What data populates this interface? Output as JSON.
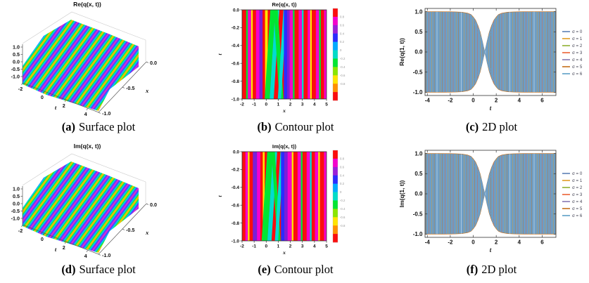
{
  "figure": {
    "background": "#ffffff",
    "description": "Six-panel figure: surface, contour and 2D plots of the real and imaginary parts of q(x,t)"
  },
  "palette": {
    "R": "#fb0d0d",
    "M": "#f500cd",
    "P": "#7a1fd8",
    "B": "#2b2bff",
    "C": "#00dcd2",
    "G": "#00e632",
    "Y": "#ffe400"
  },
  "chart_data": [
    {
      "id": "a",
      "type": "surface",
      "title": "Re(q(x, t))",
      "caption": {
        "label": "(a)",
        "text": "Surface plot"
      },
      "axes": {
        "z_ticks": [
          "1.0",
          "0.5",
          "0.0",
          "-0.5",
          "-1.0"
        ],
        "z_range": [
          -1,
          1
        ],
        "t_label": "t",
        "t_ticks": [
          "-2",
          "0",
          "2",
          "4"
        ],
        "t_range": [
          -2,
          5
        ],
        "x_label": "x",
        "x_ticks": [
          "0.0",
          "-0.5",
          "-1.0"
        ],
        "x_range": [
          -1,
          0
        ]
      },
      "surface": {
        "ridges": 7.5,
        "colormap": [
          "#ff2ec8",
          "#5033ff",
          "#00d2ff",
          "#00e63c",
          "#ffdc00",
          "#ff7800"
        ],
        "description": "periodic plane-wave ridges of amplitude 1 running parallel to the x axis, rainbow colored by height"
      }
    },
    {
      "id": "b",
      "type": "heatmap",
      "subtype": "contour",
      "title": "Re(q(x, t))",
      "caption": {
        "label": "(b)",
        "text": "Contour plot"
      },
      "xlabel": "x",
      "ylabel": "t",
      "x_ticks": [
        "-2",
        "-1",
        "0",
        "1",
        "2",
        "3",
        "4",
        "5"
      ],
      "xlim": [
        -2,
        5
      ],
      "y_ticks": [
        "0.0",
        "-0.2",
        "-0.4",
        "-0.6",
        "-0.8",
        "-1.0"
      ],
      "ylim": [
        -1,
        0
      ],
      "stripes": [
        [
          "R",
          5,
          0
        ],
        [
          "G",
          2,
          0
        ],
        [
          "M",
          4,
          0
        ],
        [
          "Y",
          2,
          0
        ],
        [
          "R",
          4,
          0
        ],
        [
          "M",
          4,
          0
        ],
        [
          "P",
          4,
          0
        ],
        [
          "R",
          3,
          0
        ],
        [
          "Y",
          3,
          0
        ],
        [
          "G",
          6,
          -1
        ],
        [
          "C",
          5,
          -1
        ],
        [
          "G",
          5,
          1
        ],
        [
          "C",
          4,
          -1
        ],
        [
          "B",
          4,
          0
        ],
        [
          "P",
          3,
          0
        ],
        [
          "M",
          4,
          0
        ],
        [
          "G",
          2,
          0
        ],
        [
          "R",
          5,
          0
        ],
        [
          "M",
          4,
          0
        ],
        [
          "C",
          2,
          0
        ],
        [
          "R",
          5,
          0
        ],
        [
          "M",
          3,
          0
        ],
        [
          "Y",
          2,
          0
        ],
        [
          "R",
          5,
          0
        ],
        [
          "M",
          4,
          0
        ],
        [
          "G",
          2,
          0
        ],
        [
          "R",
          4,
          0
        ],
        [
          "M",
          3,
          0
        ]
      ],
      "colorbar": {
        "colors": [
          "#fb0d0d",
          "#f500cd",
          "#9a1fd8",
          "#2b2bff",
          "#00aaff",
          "#00dcc8",
          "#00e632",
          "#8ae600",
          "#ffe400",
          "#ff9000",
          "#fb0d0d"
        ],
        "labels": [
          "0.8",
          "0.6",
          "0.4",
          "0.2",
          "0",
          "-0.2",
          "-0.4",
          "-0.6",
          "-0.8"
        ]
      }
    },
    {
      "id": "c",
      "type": "line",
      "caption": {
        "label": "(c)",
        "text": "2D plot"
      },
      "xlabel": "t",
      "ylabel": "Re(q(1, t))",
      "x_ticks": [
        "-4",
        "-2",
        "0",
        "2",
        "4",
        "6"
      ],
      "xlim": [
        -4.2,
        7.2
      ],
      "y_ticks": [
        "1.0",
        "0.5",
        "0.0",
        "-0.5",
        "-1.0"
      ],
      "ylim": [
        -1.08,
        1.08
      ],
      "legend": [
        {
          "label": "σ = 0",
          "color": "#5e81b5"
        },
        {
          "label": "σ = 1",
          "color": "#e19c24"
        },
        {
          "label": "σ = 2",
          "color": "#8fb032"
        },
        {
          "label": "σ = 3",
          "color": "#eb6235"
        },
        {
          "label": "σ = 4",
          "color": "#8778b3"
        },
        {
          "label": "σ = 5",
          "color": "#c56e1a"
        },
        {
          "label": "σ = 6",
          "color": "#5d9ec7"
        }
      ],
      "envelope": {
        "pinch_t": 1.0,
        "amplitude": 1.0,
        "formula": "|tanh(1.35 (t - 1))|",
        "samples": [
          [
            -4.2,
            1.0
          ],
          [
            -3.5,
            1.0
          ],
          [
            -3,
            1.0
          ],
          [
            -2.5,
            0.999
          ],
          [
            -2,
            0.998
          ],
          [
            -1.5,
            0.995
          ],
          [
            -1,
            0.988
          ],
          [
            -0.5,
            0.963
          ],
          [
            -0.2,
            0.93
          ],
          [
            0,
            0.87
          ],
          [
            0.2,
            0.79
          ],
          [
            0.4,
            0.66
          ],
          [
            0.6,
            0.5
          ],
          [
            0.8,
            0.26
          ],
          [
            0.9,
            0.13
          ],
          [
            1,
            0.01
          ],
          [
            1.1,
            0.13
          ],
          [
            1.2,
            0.26
          ],
          [
            1.4,
            0.5
          ],
          [
            1.6,
            0.66
          ],
          [
            1.8,
            0.79
          ],
          [
            2,
            0.87
          ],
          [
            2.2,
            0.93
          ],
          [
            2.5,
            0.963
          ],
          [
            3,
            0.988
          ],
          [
            3.5,
            0.995
          ],
          [
            4,
            0.998
          ],
          [
            4.5,
            1.0
          ],
          [
            5.5,
            1.0
          ],
          [
            7.2,
            1.0
          ]
        ]
      },
      "fill_color": "#6d9ec6",
      "stripe_colors": [
        "#c56e1a",
        "#eb6235",
        "#e19c24"
      ]
    },
    {
      "id": "d",
      "type": "surface",
      "title": "Im(q(x, t))",
      "caption": {
        "label": "(d)",
        "text": "Surface plot"
      },
      "axes": {
        "z_ticks": [
          "1.0",
          "0.5",
          "0.0",
          "-0.5",
          "-1.0"
        ],
        "z_range": [
          -1,
          1
        ],
        "t_label": "t",
        "t_ticks": [
          "-2",
          "0",
          "2",
          "4"
        ],
        "t_range": [
          -2,
          5
        ],
        "x_label": "x",
        "x_ticks": [
          "0.0",
          "-0.5",
          "-1.0"
        ],
        "x_range": [
          -1,
          0
        ]
      },
      "surface": {
        "ridges": 7.5,
        "colormap": [
          "#ff2ec8",
          "#5033ff",
          "#00d2ff",
          "#00e63c",
          "#ffdc00",
          "#ff7800"
        ],
        "description": "periodic plane-wave ridges of amplitude 1 running parallel to the x axis, rainbow colored by height"
      }
    },
    {
      "id": "e",
      "type": "heatmap",
      "subtype": "contour",
      "title": "Im(q(x, t))",
      "caption": {
        "label": "(e)",
        "text": "Contour plot"
      },
      "xlabel": "x",
      "ylabel": "t",
      "x_ticks": [
        "-2",
        "-1",
        "0",
        "1",
        "2",
        "3",
        "4",
        "5"
      ],
      "xlim": [
        -2,
        5
      ],
      "y_ticks": [
        "0.0",
        "-0.2",
        "-0.4",
        "-0.6",
        "-0.8",
        "-1.0"
      ],
      "ylim": [
        -1,
        0
      ],
      "stripes": [
        [
          "R",
          4,
          0
        ],
        [
          "M",
          3,
          0
        ],
        [
          "Y",
          2,
          0
        ],
        [
          "R",
          4,
          0
        ],
        [
          "P",
          5,
          0
        ],
        [
          "M",
          4,
          0
        ],
        [
          "R",
          3,
          0
        ],
        [
          "Y",
          2,
          0
        ],
        [
          "G",
          7,
          -1
        ],
        [
          "C",
          5,
          -1
        ],
        [
          "G",
          4,
          1
        ],
        [
          "C",
          4,
          -1
        ],
        [
          "B",
          4,
          0
        ],
        [
          "P",
          4,
          0
        ],
        [
          "M",
          5,
          0
        ],
        [
          "Y",
          2,
          0
        ],
        [
          "R",
          5,
          0
        ],
        [
          "M",
          4,
          0
        ],
        [
          "G",
          2,
          0
        ],
        [
          "R",
          5,
          0
        ],
        [
          "M",
          4,
          0
        ],
        [
          "C",
          2,
          0
        ],
        [
          "R",
          4,
          0
        ],
        [
          "M",
          4,
          0
        ],
        [
          "Y",
          2,
          0
        ],
        [
          "R",
          5,
          0
        ],
        [
          "M",
          3,
          0
        ]
      ],
      "colorbar": {
        "colors": [
          "#fb0d0d",
          "#f500cd",
          "#9a1fd8",
          "#2b2bff",
          "#00aaff",
          "#00dcc8",
          "#00e632",
          "#8ae600",
          "#ffe400",
          "#ff9000",
          "#fb0d0d"
        ],
        "labels": [
          "0.8",
          "0.6",
          "0.4",
          "0.2",
          "0",
          "-0.2",
          "-0.4",
          "-0.6",
          "-0.8"
        ]
      }
    },
    {
      "id": "f",
      "type": "line",
      "caption": {
        "label": "(f)",
        "text": "2D plot"
      },
      "xlabel": "t",
      "ylabel": "Im(q(1, t))",
      "x_ticks": [
        "-4",
        "-2",
        "0",
        "2",
        "4",
        "6"
      ],
      "xlim": [
        -4.2,
        7.2
      ],
      "y_ticks": [
        "1.0",
        "0.5",
        "0.0",
        "-0.5",
        "-1.0"
      ],
      "ylim": [
        -1.08,
        1.08
      ],
      "legend": [
        {
          "label": "σ = 0",
          "color": "#5e81b5"
        },
        {
          "label": "σ = 1",
          "color": "#e19c24"
        },
        {
          "label": "σ = 2",
          "color": "#8fb032"
        },
        {
          "label": "σ = 3",
          "color": "#eb6235"
        },
        {
          "label": "σ = 4",
          "color": "#8778b3"
        },
        {
          "label": "σ = 5",
          "color": "#c56e1a"
        },
        {
          "label": "σ = 6",
          "color": "#5d9ec7"
        }
      ],
      "envelope": {
        "pinch_t": 1.0,
        "amplitude": 1.0,
        "formula": "|tanh(1.35 (t - 1))|",
        "samples": [
          [
            -4.2,
            1.0
          ],
          [
            -3.5,
            1.0
          ],
          [
            -3,
            1.0
          ],
          [
            -2.5,
            0.999
          ],
          [
            -2,
            0.998
          ],
          [
            -1.5,
            0.995
          ],
          [
            -1,
            0.988
          ],
          [
            -0.5,
            0.963
          ],
          [
            -0.2,
            0.93
          ],
          [
            0,
            0.87
          ],
          [
            0.2,
            0.79
          ],
          [
            0.4,
            0.66
          ],
          [
            0.6,
            0.5
          ],
          [
            0.8,
            0.26
          ],
          [
            0.9,
            0.13
          ],
          [
            1,
            0.01
          ],
          [
            1.1,
            0.13
          ],
          [
            1.2,
            0.26
          ],
          [
            1.4,
            0.5
          ],
          [
            1.6,
            0.66
          ],
          [
            1.8,
            0.79
          ],
          [
            2,
            0.87
          ],
          [
            2.2,
            0.93
          ],
          [
            2.5,
            0.963
          ],
          [
            3,
            0.988
          ],
          [
            3.5,
            0.995
          ],
          [
            4,
            0.998
          ],
          [
            4.5,
            1.0
          ],
          [
            5.5,
            1.0
          ],
          [
            7.2,
            1.0
          ]
        ]
      },
      "fill_color": "#6d9ec6",
      "stripe_colors": [
        "#c56e1a",
        "#eb6235",
        "#e19c24"
      ]
    }
  ]
}
